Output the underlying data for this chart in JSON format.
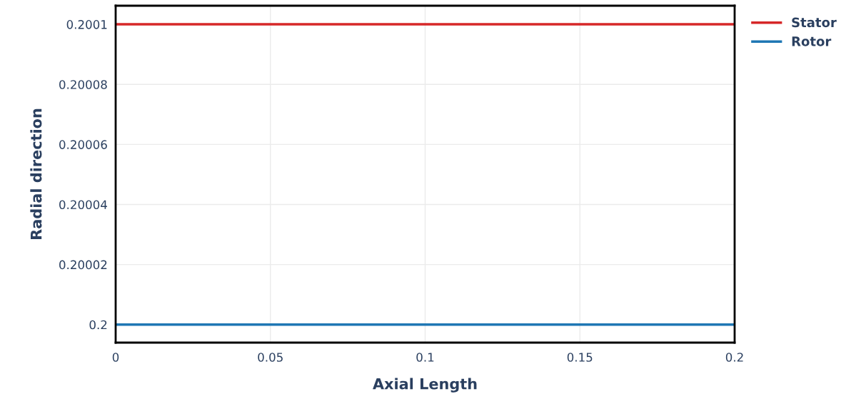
{
  "chart_data": {
    "type": "line",
    "xlabel": "Axial Length",
    "ylabel": "Radial direction",
    "x": [
      0,
      0.2
    ],
    "series": [
      {
        "name": "Stator",
        "color": "#d62728",
        "values": [
          0.2001,
          0.2001
        ]
      },
      {
        "name": "Rotor",
        "color": "#1f77b4",
        "values": [
          0.2,
          0.2
        ]
      }
    ],
    "xlim": [
      0,
      0.2
    ],
    "xticks": [
      0,
      0.05,
      0.1,
      0.15,
      0.2
    ],
    "ylim": [
      0.199994,
      0.2001062
    ],
    "yticks": [
      0.2,
      0.20002,
      0.20004,
      0.20006,
      0.20008,
      0.2001
    ],
    "grid": true,
    "legend": "top right",
    "marker": "none",
    "line_style": "solid"
  }
}
